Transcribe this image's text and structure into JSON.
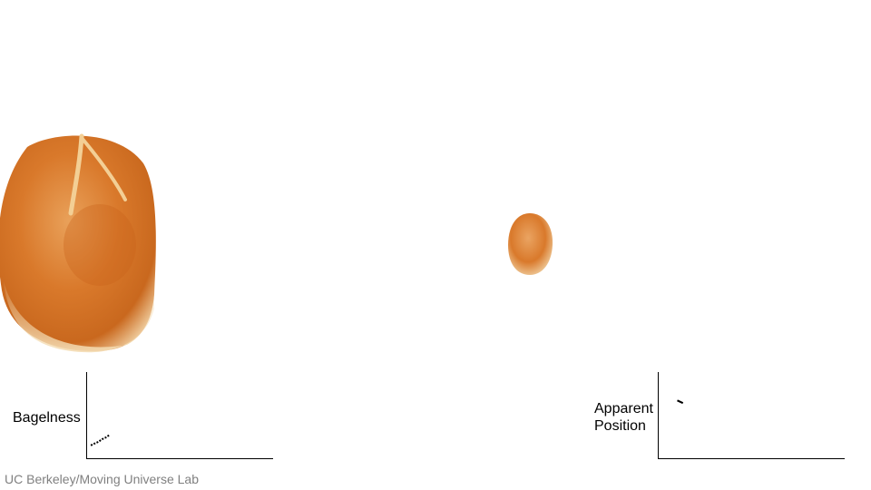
{
  "footer": {
    "credit": "UC Berkeley/Moving Universe Lab"
  },
  "images": [
    {
      "name": "large-bread-roll",
      "color": "#d9792b"
    },
    {
      "name": "small-bread-roll",
      "color": "#d9792b"
    }
  ],
  "chart_data": [
    {
      "type": "line",
      "ylabel": "Bagelness",
      "xlabel": "",
      "title": "",
      "xlim": [
        0,
        100
      ],
      "ylim": [
        0,
        100
      ],
      "grid": false,
      "series": [
        {
          "x": [
            2,
            4,
            6,
            8,
            10,
            12
          ],
          "y": [
            15,
            17,
            19,
            22,
            24,
            27
          ],
          "style": "dashed",
          "color": "#000000"
        }
      ]
    },
    {
      "type": "line",
      "ylabel": "Apparent Position",
      "xlabel": "",
      "title": "",
      "xlim": [
        0,
        100
      ],
      "ylim": [
        0,
        100
      ],
      "grid": false,
      "series": [
        {
          "x": [
            10,
            13
          ],
          "y": [
            67,
            64
          ],
          "style": "solid",
          "color": "#000000"
        }
      ]
    }
  ]
}
